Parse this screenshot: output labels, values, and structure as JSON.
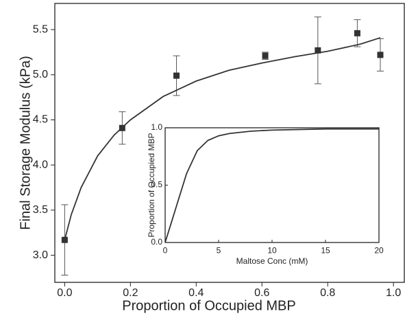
{
  "chart_data": [
    {
      "type": "scatter",
      "x_label": "Proportion of Occupied MBP",
      "y_label": "Final Storage Modulus (kPa)",
      "xlim": [
        -0.03,
        1.033
      ],
      "ylim": [
        2.7,
        5.79
      ],
      "xticks": [
        {
          "value": 0,
          "label": "0.0"
        },
        0.2,
        0.4,
        0.6,
        0.8,
        {
          "value": 1,
          "label": "1.0"
        }
      ],
      "yticks": [
        {
          "value": 3,
          "label": "3.0"
        },
        3.5,
        {
          "value": 4,
          "label": "4.0"
        },
        4.5,
        {
          "value": 5,
          "label": "5.0"
        },
        5.5
      ],
      "series": [
        {
          "type": "scatter",
          "color": "#333333",
          "x": [
            0.0,
            0.175,
            0.34,
            0.61,
            0.77,
            0.89,
            0.96
          ],
          "values": [
            3.17,
            4.41,
            4.99,
            5.21,
            5.27,
            5.46,
            5.22
          ],
          "errors": [
            0.39,
            0.18,
            0.22,
            0.04,
            0.37,
            0.15,
            0.18
          ]
        },
        {
          "type": "line",
          "color": "#333333",
          "x": [
            0,
            0.02,
            0.05,
            0.1,
            0.15,
            0.2,
            0.3,
            0.4,
            0.5,
            0.6,
            0.7,
            0.8,
            0.9,
            0.96
          ],
          "values": [
            3.17,
            3.45,
            3.75,
            4.1,
            4.33,
            4.5,
            4.76,
            4.93,
            5.05,
            5.13,
            5.2,
            5.26,
            5.34,
            5.41
          ]
        }
      ]
    },
    {
      "type": "line",
      "x_label": "Maltose Conc (mM)",
      "y_label": "Proportion of Occupied MBP",
      "xlim": [
        0,
        20
      ],
      "ylim": [
        0,
        1
      ],
      "xticks": [
        0,
        5,
        10,
        15,
        20
      ],
      "yticks": [
        {
          "value": 0,
          "label": "0.0"
        },
        0.5,
        {
          "value": 1,
          "label": "1.0"
        }
      ],
      "series": [
        {
          "type": "line",
          "color": "#333333",
          "x": [
            0,
            1,
            2,
            3,
            4,
            5,
            6,
            8,
            10,
            15,
            20
          ],
          "values": [
            0,
            0.3,
            0.6,
            0.8,
            0.89,
            0.93,
            0.95,
            0.97,
            0.98,
            0.99,
            0.99
          ]
        }
      ]
    }
  ]
}
